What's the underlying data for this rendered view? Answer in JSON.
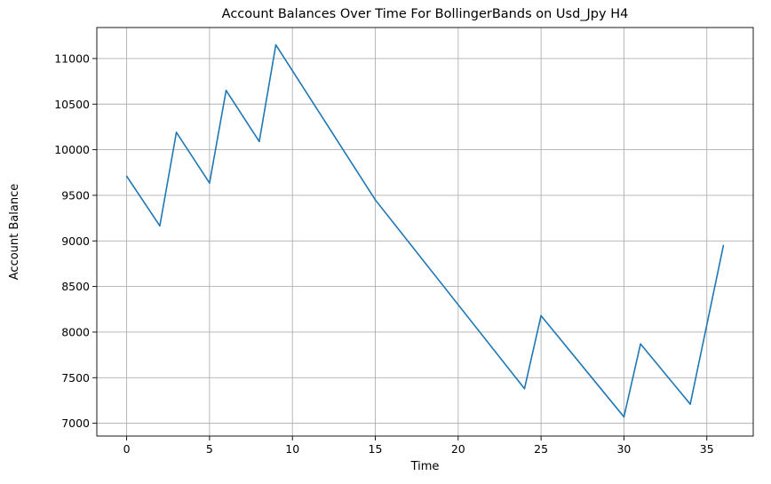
{
  "chart_data": {
    "type": "line",
    "title": "Account Balances Over Time For BollingerBands on Usd_Jpy H4",
    "xlabel": "Time",
    "ylabel": "Account Balance",
    "xlim": [
      -1.8,
      37.8
    ],
    "ylim": [
      6860,
      11340
    ],
    "xticks": [
      0,
      5,
      10,
      15,
      20,
      25,
      30,
      35
    ],
    "yticks": [
      7000,
      7500,
      8000,
      8500,
      9000,
      9500,
      10000,
      10500,
      11000
    ],
    "grid": true,
    "series": [
      {
        "name": "Account Balance",
        "color": "#1f77b4",
        "x": [
          0,
          2,
          3,
          5,
          6,
          8,
          9,
          15,
          24,
          25,
          30,
          31,
          34,
          36
        ],
        "values": [
          9710,
          9165,
          10190,
          9635,
          10650,
          10090,
          11150,
          9450,
          7380,
          8180,
          7070,
          7870,
          7210,
          8950
        ]
      }
    ]
  }
}
